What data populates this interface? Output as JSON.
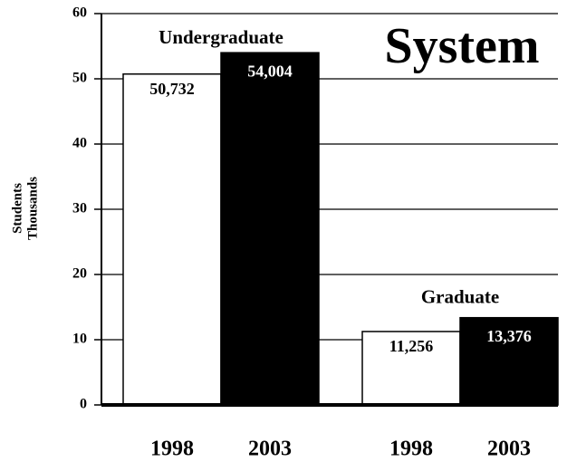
{
  "chart_data": {
    "type": "bar",
    "title": "System",
    "ylabel_lines": [
      "Students",
      "Thousands"
    ],
    "ylim": [
      0,
      60
    ],
    "yticks": [
      0,
      10,
      20,
      30,
      40,
      50,
      60
    ],
    "grid": true,
    "colors": [
      "#ffffff",
      "#000000"
    ],
    "groups": [
      {
        "name": "Undergraduate",
        "categories": [
          "1998",
          "2003"
        ],
        "values": [
          50.732,
          54.004
        ],
        "value_labels": [
          "50,732",
          "54,004"
        ]
      },
      {
        "name": "Graduate",
        "categories": [
          "1998",
          "2003"
        ],
        "values": [
          11.256,
          13.376
        ],
        "value_labels": [
          "11,256",
          "13,376"
        ]
      }
    ]
  }
}
